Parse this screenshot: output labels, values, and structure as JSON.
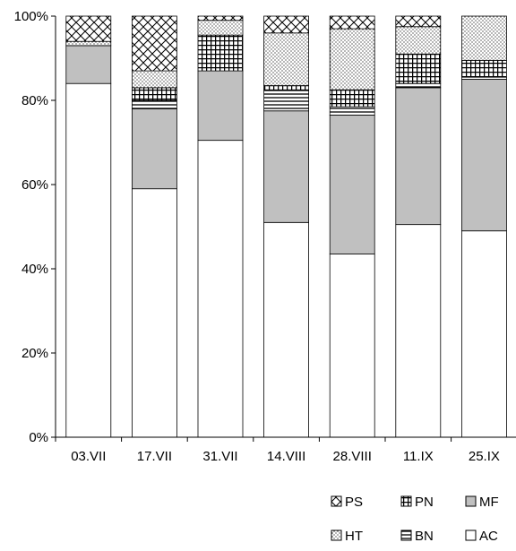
{
  "chart_data": {
    "type": "bar",
    "stacked": true,
    "normalized": true,
    "categories": [
      "03.VII",
      "17.VII",
      "31.VII",
      "14.VIII",
      "28.VIII",
      "11.IX",
      "25.IX"
    ],
    "series": [
      {
        "name": "AC",
        "values": [
          84,
          59,
          70.5,
          51,
          43.5,
          50.5,
          49
        ],
        "pattern": "white"
      },
      {
        "name": "MF",
        "values": [
          9,
          19,
          16.5,
          26.5,
          33,
          32.5,
          36
        ],
        "pattern": "gray"
      },
      {
        "name": "BN",
        "values": [
          0,
          2,
          0,
          5,
          2,
          1,
          0.5
        ],
        "pattern": "hlines"
      },
      {
        "name": "PN",
        "values": [
          0,
          3,
          8.5,
          1,
          4,
          7,
          4
        ],
        "pattern": "grid"
      },
      {
        "name": "HT",
        "values": [
          1,
          4,
          3.5,
          12.5,
          14.5,
          6.5,
          10.5
        ],
        "pattern": "dots"
      },
      {
        "name": "PS",
        "values": [
          6,
          13,
          1,
          4,
          3,
          2.5,
          0
        ],
        "pattern": "crosshatch"
      }
    ],
    "yticks": [
      "0%",
      "20%",
      "40%",
      "60%",
      "80%",
      "100%"
    ],
    "ylim": [
      0,
      100
    ],
    "grid": false,
    "legend_position": "bottom-right",
    "legend_order": [
      "PS",
      "PN",
      "MF",
      "HT",
      "BN",
      "AC"
    ]
  }
}
